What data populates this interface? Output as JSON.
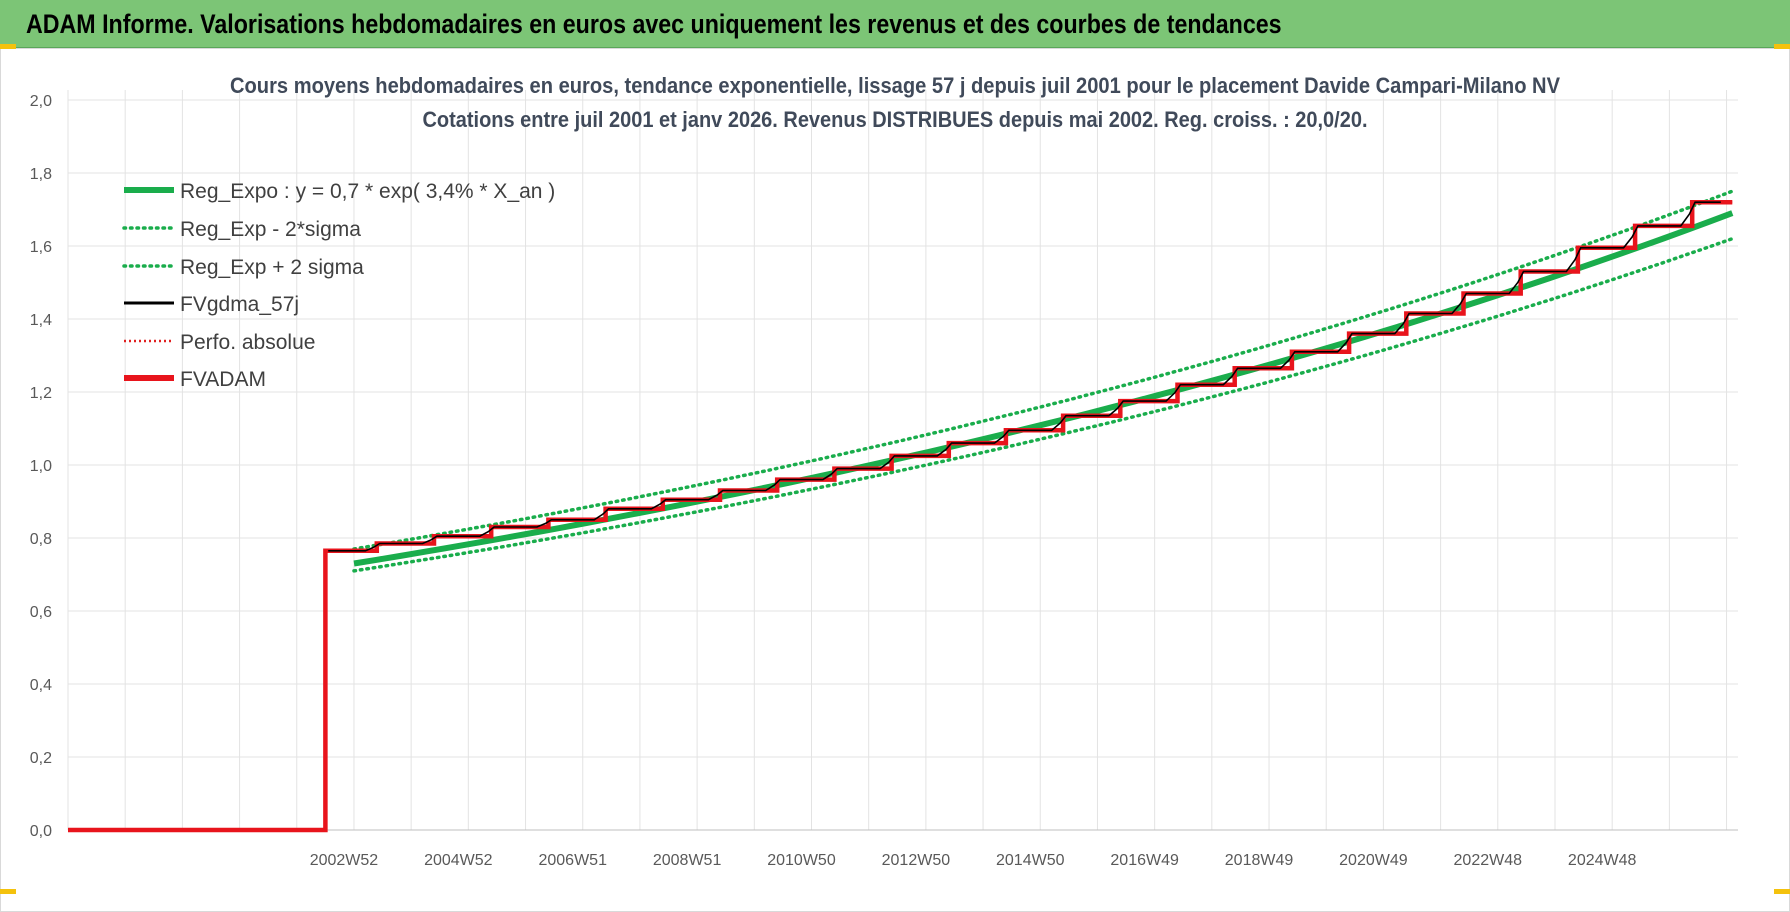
{
  "banner": {
    "title": "ADAM Informe. Valorisations hebdomadaires en euros avec uniquement les revenus et des courbes de tendances"
  },
  "colors": {
    "banner_bg": "#7cc576",
    "reg_expo": "#1aad4c",
    "sigma_bands": "#1aad4c",
    "fvgdma": "#000000",
    "perfo": "#e02020",
    "fvadam": "#e8141c"
  },
  "chart_data": {
    "type": "line",
    "title": "Cours moyens hebdomadaires en euros, tendance exponentielle, lissage 57 j depuis juil 2001 pour le placement Davide Campari-Milano NV",
    "subtitle": "Cotations entre juil 2001 et janv 2026. Revenus DISTRIBUES depuis mai 2002. Reg. croiss. : 20,0/20.",
    "xlabel": "",
    "ylabel": "",
    "ylim": [
      0,
      2.0
    ],
    "y_ticks": [
      "0,0",
      "0,2",
      "0,4",
      "0,6",
      "0,8",
      "1,0",
      "1,2",
      "1,4",
      "1,6",
      "1,8",
      "2,0"
    ],
    "x_tick_labels": [
      "2002W52",
      "2004W52",
      "2006W51",
      "2008W51",
      "2010W50",
      "2012W50",
      "2014W50",
      "2016W49",
      "2018W49",
      "2020W49",
      "2022W48",
      "2024W48"
    ],
    "x_tick_years": [
      2002,
      2004,
      2006,
      2008,
      2010,
      2012,
      2014,
      2016,
      2018,
      2020,
      2022,
      2024
    ],
    "x_range": [
      1997.0,
      2026.2
    ],
    "data_start_year": 2001.5,
    "grid": true,
    "legend_position": "top-left",
    "series": [
      {
        "name": "Reg_Expo : y = 0,7 * exp( 3,4% *  X_an )",
        "style": "solid-thick",
        "x": [
          2002.0,
          2026.1
        ],
        "y": [
          0.73,
          1.69
        ]
      },
      {
        "name": "Reg_Exp - 2*sigma",
        "style": "dotted",
        "x": [
          2002.0,
          2026.1
        ],
        "y": [
          0.71,
          1.62
        ]
      },
      {
        "name": "Reg_Exp + 2 sigma",
        "style": "dotted",
        "x": [
          2002.0,
          2026.1
        ],
        "y": [
          0.77,
          1.75
        ]
      },
      {
        "name": "FVgdma_57j",
        "style": "solid-thin"
      },
      {
        "name": "Perfo. absolue",
        "style": "dotted-red"
      },
      {
        "name": "FVADAM",
        "style": "solid-thick",
        "pre_value": 0.0,
        "step_years": [
          2001.5,
          2002.4,
          2003.4,
          2004.4,
          2005.4,
          2006.4,
          2007.4,
          2008.4,
          2009.4,
          2010.4,
          2011.4,
          2012.4,
          2013.4,
          2014.4,
          2015.4,
          2016.4,
          2017.4,
          2018.4,
          2019.4,
          2020.4,
          2021.4,
          2022.4,
          2023.4,
          2024.4,
          2025.4,
          2026.1
        ],
        "step_values": [
          0.765,
          0.785,
          0.805,
          0.83,
          0.85,
          0.88,
          0.905,
          0.93,
          0.96,
          0.99,
          1.025,
          1.06,
          1.095,
          1.135,
          1.175,
          1.22,
          1.265,
          1.31,
          1.36,
          1.415,
          1.47,
          1.53,
          1.595,
          1.655,
          1.72
        ]
      }
    ]
  }
}
